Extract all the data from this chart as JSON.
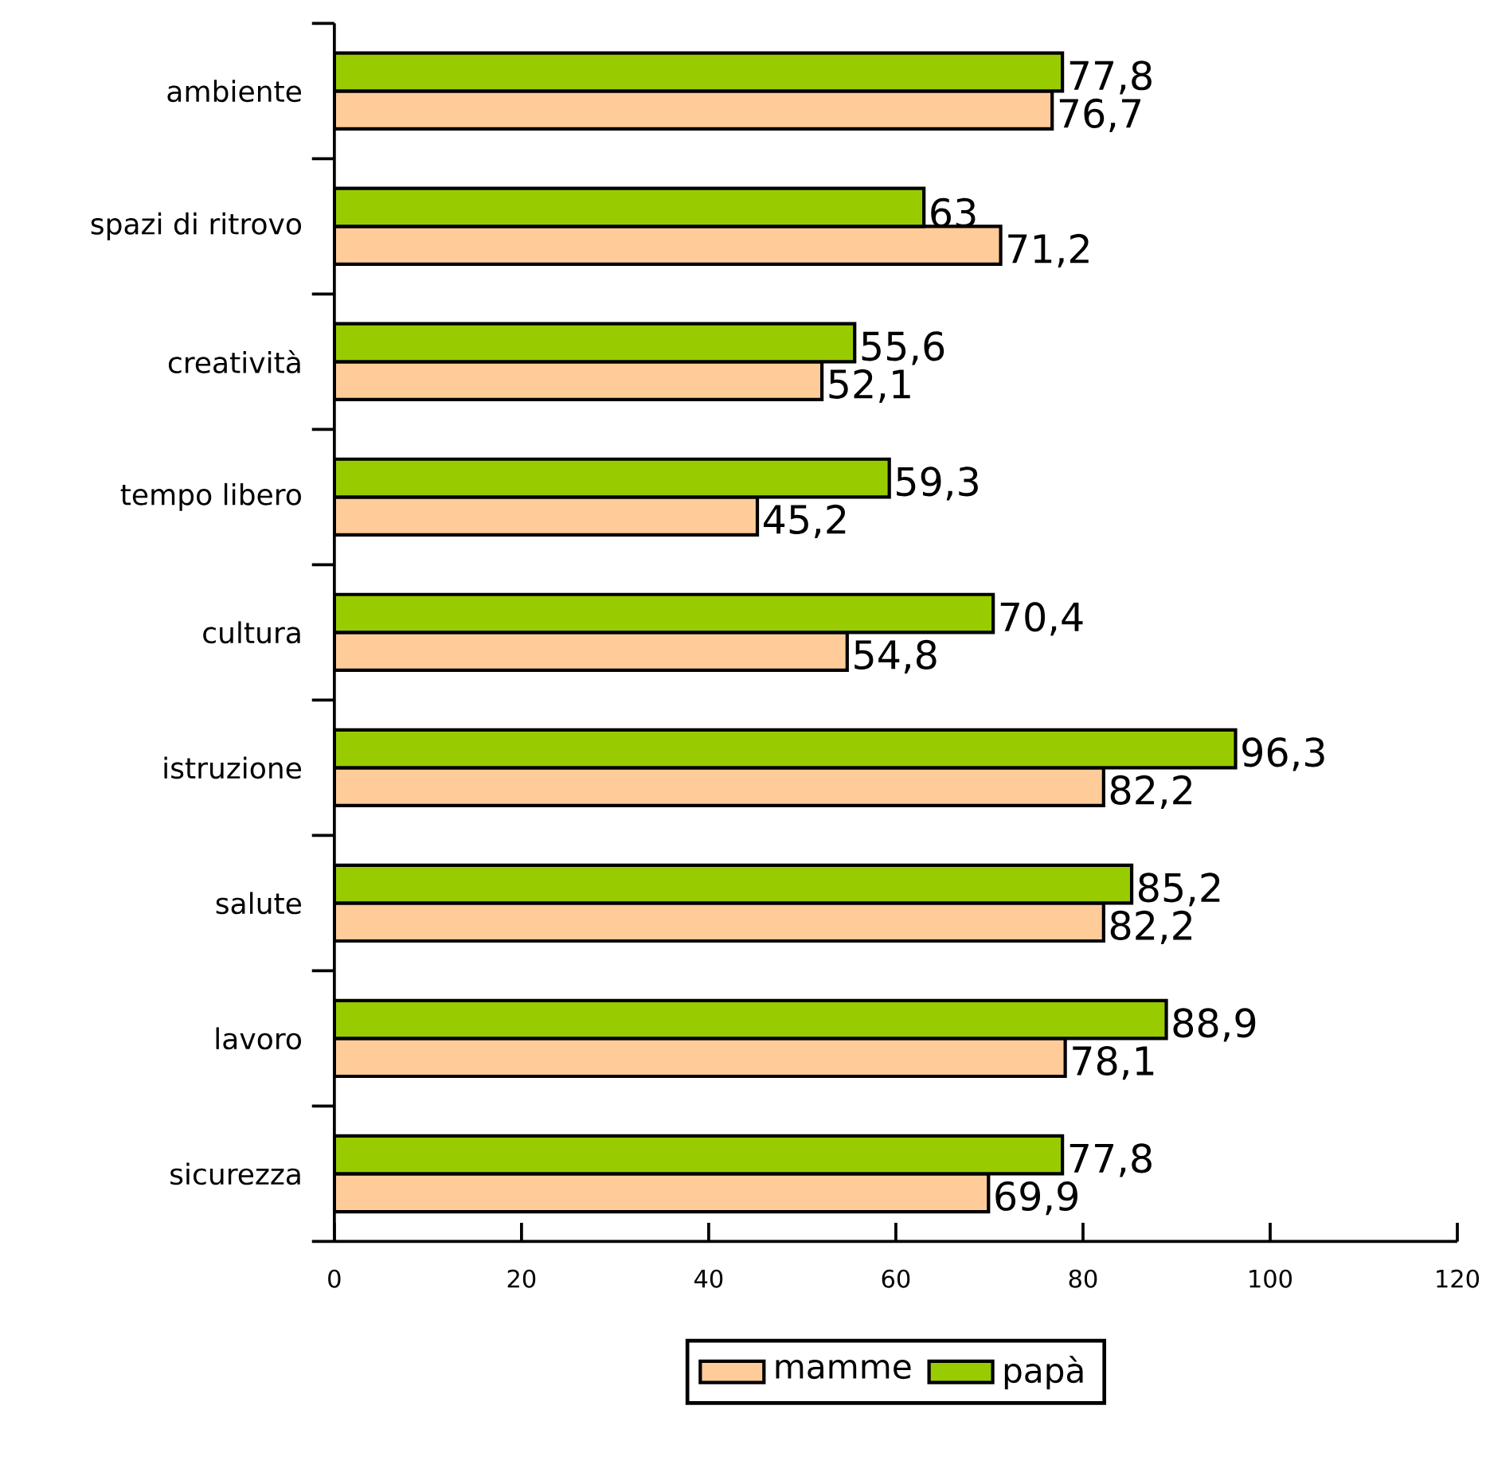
{
  "chart_data": {
    "type": "bar",
    "orientation": "horizontal",
    "categories": [
      "ambiente",
      "spazi di ritrovo",
      "creatività",
      "tempo libero",
      "cultura",
      "istruzione",
      "salute",
      "lavoro",
      "sicurezza"
    ],
    "series": [
      {
        "name": "mamme",
        "color": "#ffcc99",
        "values": [
          76.7,
          71.2,
          52.1,
          45.2,
          54.8,
          82.2,
          82.2,
          78.1,
          69.9
        ],
        "value_labels": [
          "76,7",
          "71,2",
          "52,1",
          "45,2",
          "54,8",
          "82,2",
          "82,2",
          "78,1",
          "69,9"
        ]
      },
      {
        "name": "papà",
        "color": "#99cc00",
        "values": [
          77.8,
          63,
          55.6,
          59.3,
          70.4,
          96.3,
          85.2,
          88.9,
          77.8
        ],
        "value_labels": [
          "77,8",
          "63",
          "55,6",
          "59,3",
          "70,4",
          "96,3",
          "85,2",
          "88,9",
          "77,8"
        ]
      }
    ],
    "xlim": [
      0,
      120
    ],
    "xticks": [
      0,
      20,
      40,
      60,
      80,
      100,
      120
    ],
    "legend": "bottom"
  }
}
